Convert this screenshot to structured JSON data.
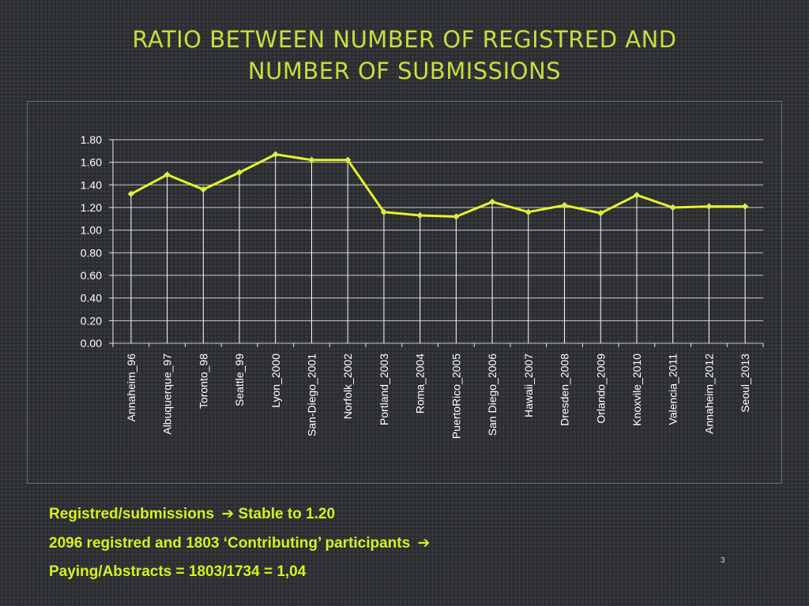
{
  "slide": {
    "title_line1": "RATIO BETWEEN NUMBER OF REGISTRED AND",
    "title_line2": "NUMBER OF SUBMISSIONS",
    "page_number": "3"
  },
  "bullets": [
    {
      "text": "Registred/submissions",
      "arrow": "➔",
      "tail": "Stable to  1.20"
    },
    {
      "text": "2096 registred  and 1803 ‘Contributing’ participants",
      "arrow": "➔",
      "tail": ""
    },
    {
      "text": "Paying/Abstracts = 1803/1734 = 1,04",
      "arrow": "",
      "tail": ""
    }
  ],
  "colors": {
    "title": "#c9dd3c",
    "bullets": "#d7ef1f",
    "line": "#e8f22a",
    "grid": "#e6e6e6"
  },
  "chart_data": {
    "type": "line",
    "title": "",
    "xlabel": "",
    "ylabel": "",
    "ylim": [
      0,
      1.8
    ],
    "ytick_step": 0.2,
    "yticks": [
      "0.00",
      "0.20",
      "0.40",
      "0.60",
      "0.80",
      "1.00",
      "1.20",
      "1.40",
      "1.60",
      "1.80"
    ],
    "grid": true,
    "legend": "none",
    "categories": [
      "Annaheim_96",
      "Albuquerque_97",
      "Toronto_98",
      "Seattle_99",
      "Lyon_2000",
      "San-Diego_2001",
      "Norfolk_2002",
      "Portland_2003",
      "Roma_2004",
      "PuertoRico_2005",
      "San Diego_2006",
      "Hawaii_2007",
      "Dresden_2008",
      "Orlando_2009",
      "Knoxvile_2010",
      "Valencia_2011",
      "Annaheim_2012",
      "Seoul_2013"
    ],
    "series": [
      {
        "name": "Registred/submissions",
        "values": [
          1.32,
          1.49,
          1.36,
          1.51,
          1.67,
          1.62,
          1.62,
          1.16,
          1.13,
          1.12,
          1.25,
          1.16,
          1.22,
          1.15,
          1.31,
          1.2,
          1.21,
          1.21
        ]
      }
    ]
  }
}
